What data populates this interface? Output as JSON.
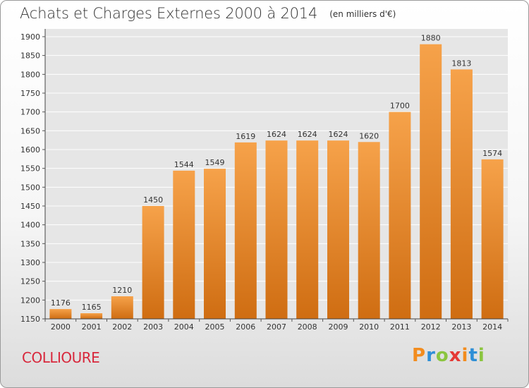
{
  "header": {
    "title": "Achats et Charges Externes 2000 à 2014",
    "unit": "(en milliers d'€)"
  },
  "footer": {
    "commune": "COLLIOURE"
  },
  "logo": {
    "text": "Proxiti",
    "colors": [
      "#f28c1e",
      "#2f8fd6",
      "#8bc53f",
      "#e53935",
      "#f28c1e",
      "#2f8fd6",
      "#8bc53f"
    ]
  },
  "colors": {
    "bar_light": "#f6a24a",
    "bar_dark": "#cf6d12",
    "plot_bg": "#e6e6e6",
    "grid": "#ffffff",
    "commune": "#d8283c"
  },
  "chart_data": {
    "type": "bar",
    "categories": [
      "2000",
      "2001",
      "2002",
      "2003",
      "2004",
      "2005",
      "2006",
      "2007",
      "2008",
      "2009",
      "2010",
      "2011",
      "2012",
      "2013",
      "2014"
    ],
    "values": [
      1176,
      1165,
      1210,
      1450,
      1544,
      1549,
      1619,
      1624,
      1624,
      1624,
      1620,
      1700,
      1880,
      1813,
      1574
    ],
    "data_labels": [
      "1176",
      "1165",
      "1210",
      "1450",
      "1544",
      "1549",
      "1619",
      "1624",
      "1624",
      "1624",
      "1620",
      "1700",
      "1880",
      "1813",
      "1574"
    ],
    "yticks": [
      1150,
      1200,
      1250,
      1300,
      1350,
      1400,
      1450,
      1500,
      1550,
      1600,
      1650,
      1700,
      1750,
      1800,
      1850,
      1900
    ],
    "ylim": [
      1150,
      1900
    ],
    "xlabel": "",
    "ylabel": "",
    "grid": true,
    "legend": "none"
  }
}
